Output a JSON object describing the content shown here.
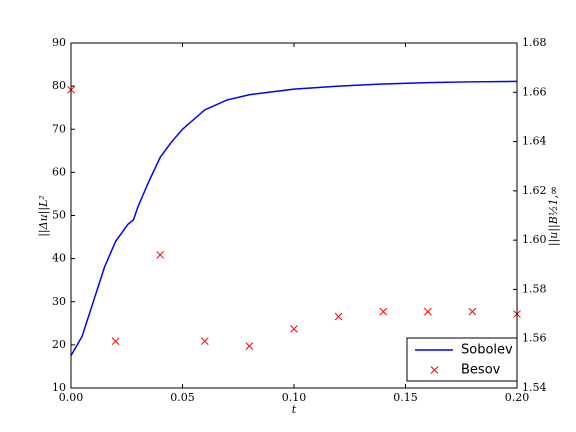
{
  "chart_data": {
    "type": "line",
    "xlabel": "t",
    "ylabel": "||Δu||L²",
    "y2label": "||u||B½1,∞",
    "xlim": [
      0,
      0.2
    ],
    "xticks": [
      {
        "value": 0,
        "label": "0.00"
      },
      0.05,
      {
        "value": 0.1,
        "label": "0.10"
      },
      0.15,
      {
        "value": 0.2,
        "label": "0.20"
      }
    ],
    "ylim": [
      10,
      90
    ],
    "yticks": [
      10,
      20,
      30,
      40,
      50,
      60,
      70,
      80,
      90
    ],
    "y2lim": [
      1.54,
      1.68
    ],
    "y2ticks": [
      1.54,
      1.56,
      1.58,
      {
        "value": 1.6,
        "label": "1.60"
      },
      1.62,
      1.64,
      1.66,
      1.68
    ],
    "legend": "lower right",
    "series": [
      {
        "name": "Sobolev",
        "color": "#0000ff",
        "marker": "line",
        "x": [
          0,
          0.005,
          0.01,
          0.015,
          0.02,
          0.0256,
          0.028,
          0.03,
          0.035,
          0.04,
          0.045,
          0.05,
          0.06,
          0.07,
          0.08,
          0.1,
          0.12,
          0.14,
          0.16,
          0.18,
          0.2
        ],
        "values": [
          17.5,
          22,
          30,
          38,
          44,
          48,
          49,
          52,
          58,
          63.5,
          67,
          70,
          74.5,
          76.8,
          78,
          79.3,
          80,
          80.5,
          80.8,
          81,
          81.1
        ]
      },
      {
        "name": "Besov",
        "color": "#ff0000",
        "marker": "x",
        "axis": "y2",
        "x": [
          0,
          0.02,
          0.04,
          0.06,
          0.08,
          0.1,
          0.12,
          0.14,
          0.16,
          0.18,
          0.2
        ],
        "values": [
          1.661,
          1.559,
          1.594,
          1.559,
          1.557,
          1.564,
          1.569,
          1.571,
          1.571,
          1.571,
          1.57
        ]
      }
    ]
  }
}
